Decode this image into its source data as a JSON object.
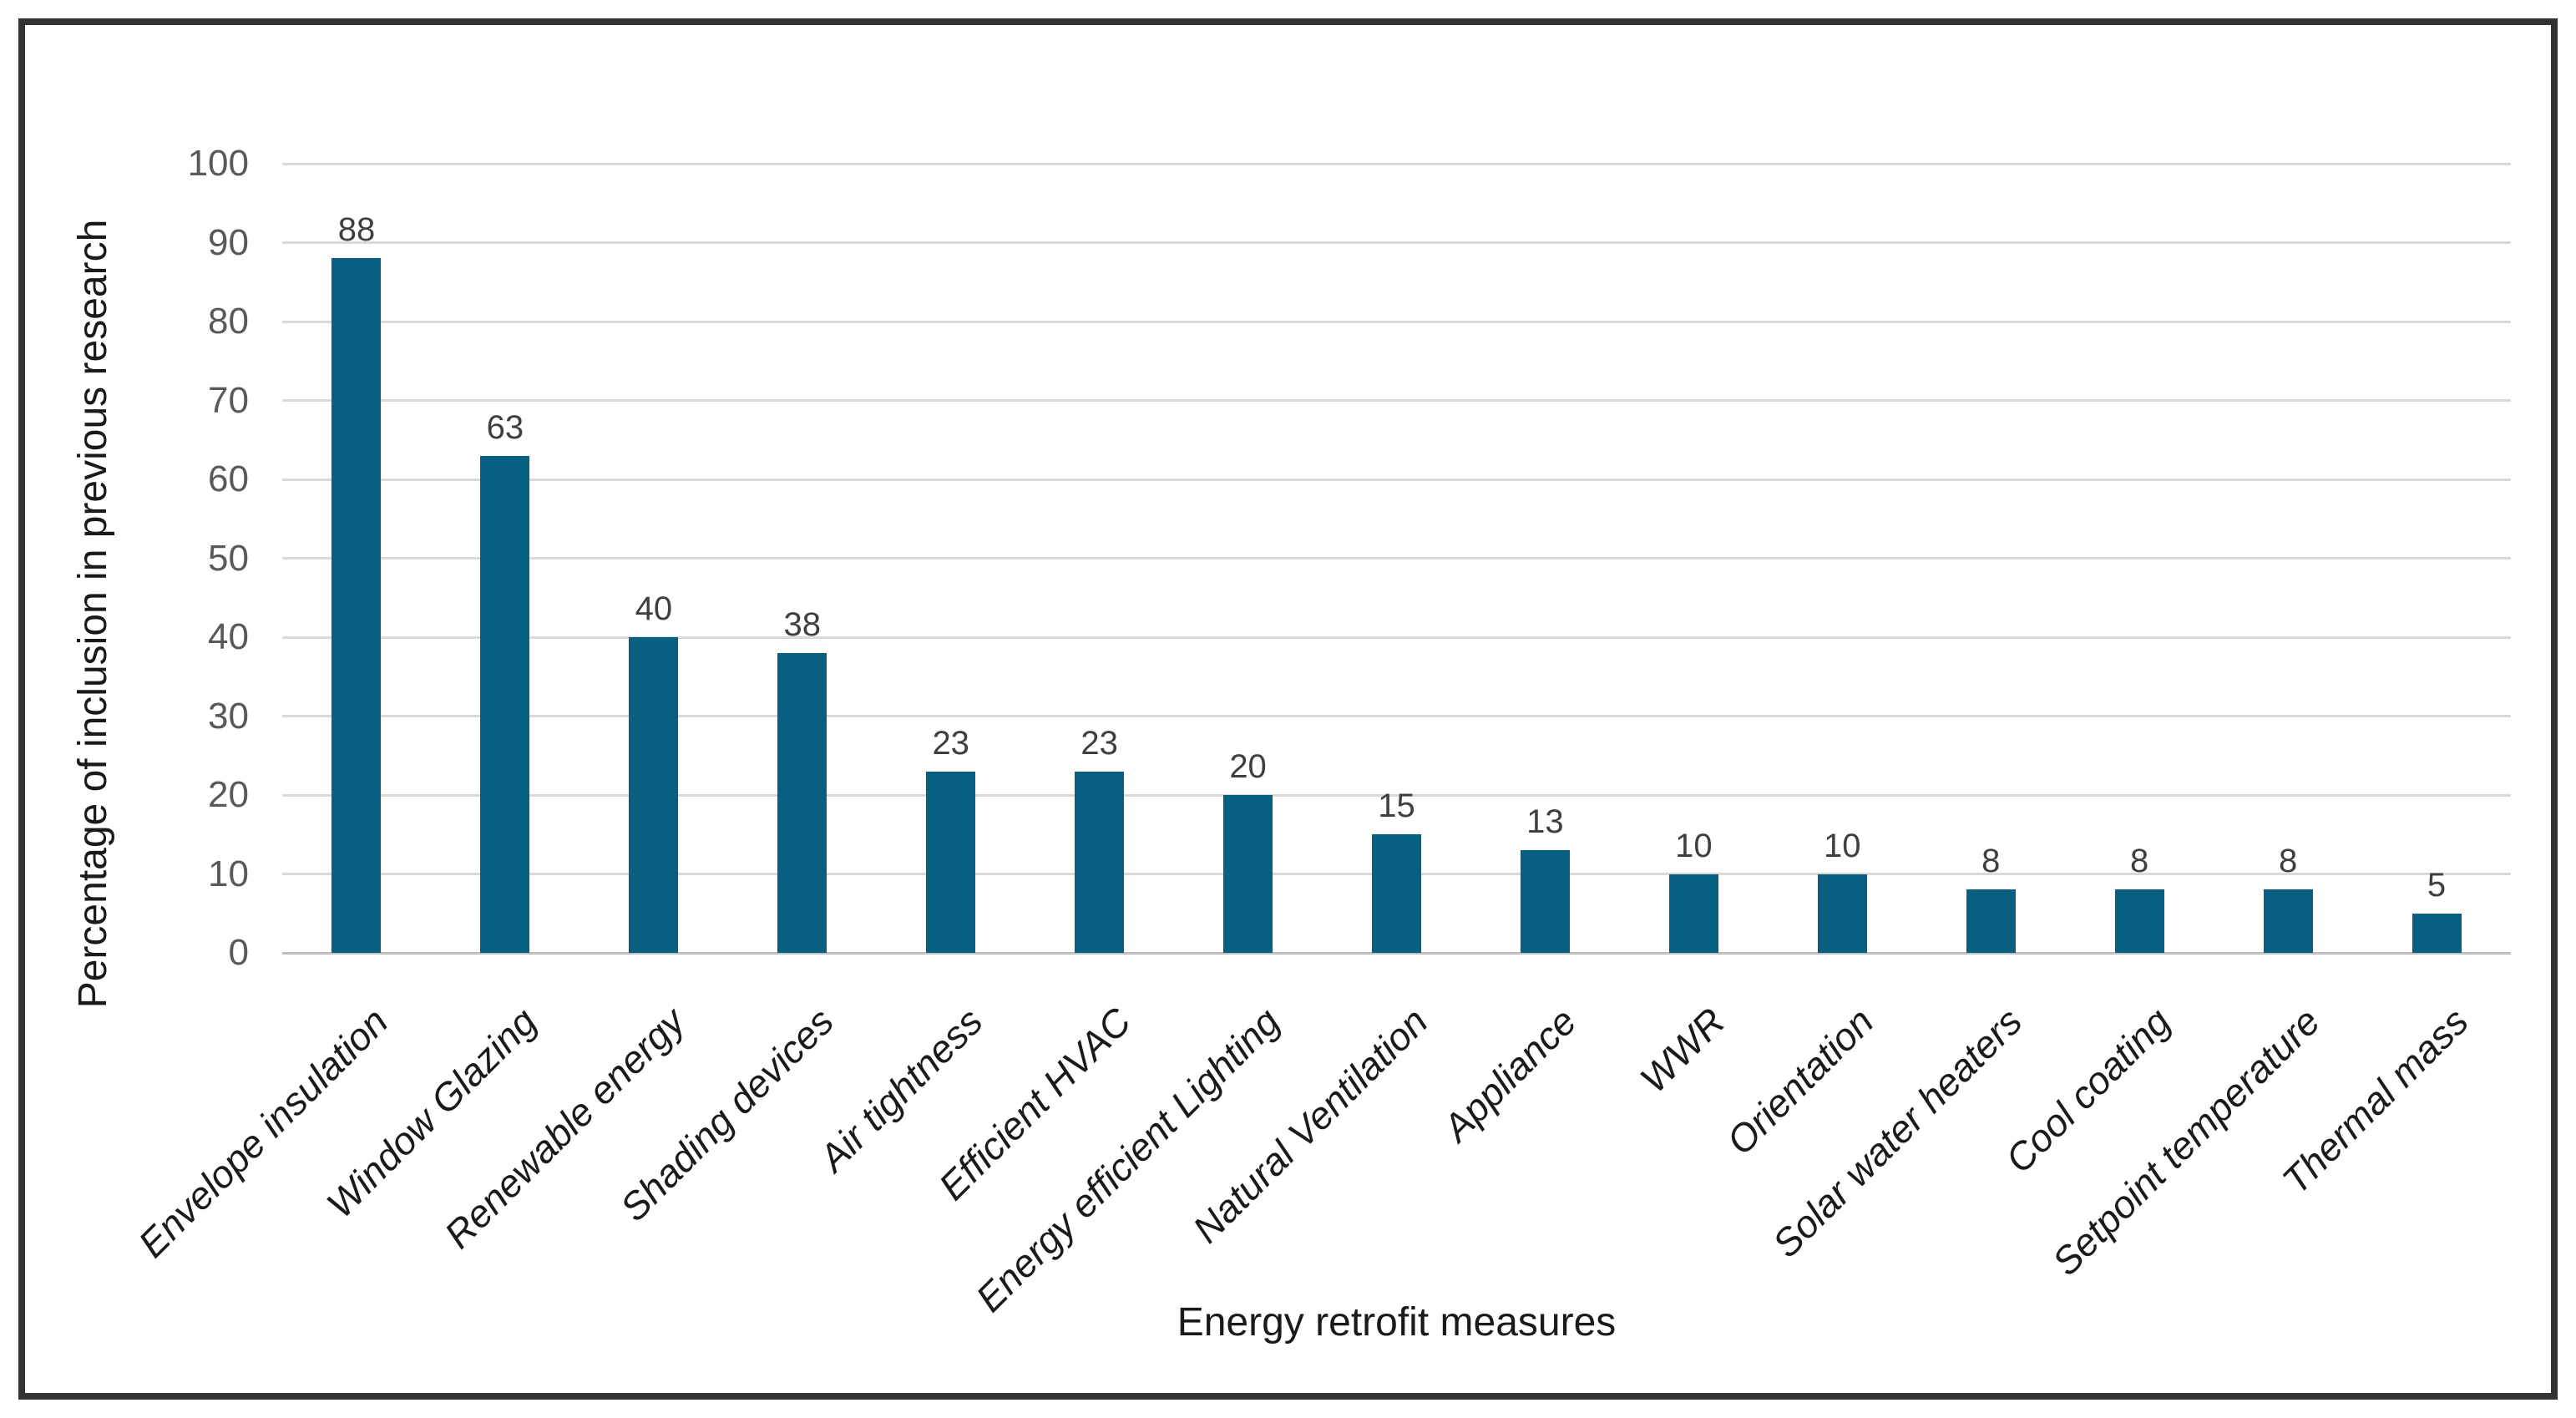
{
  "chart_data": {
    "type": "bar",
    "title": "",
    "categories": [
      "Envelope insulation",
      "Window Glazing",
      "Renewable energy",
      "Shading devices",
      "Air tightness",
      "Efficient HVAC",
      "Energy efficient Lighting",
      "Natural Ventilation",
      "Appliance",
      "WWR",
      "Orientation",
      "Solar water heaters",
      "Cool coating",
      "Setpoint temperature",
      "Thermal mass"
    ],
    "values": [
      88,
      63,
      40,
      38,
      23,
      23,
      20,
      15,
      13,
      10,
      10,
      8,
      8,
      8,
      5
    ],
    "xlabel": "Energy retrofit measures",
    "ylabel": "Percentage of inclusion in previous research",
    "ylim": [
      0,
      100
    ],
    "yticks": [
      0,
      10,
      20,
      30,
      40,
      50,
      60,
      70,
      80,
      90,
      100
    ],
    "grid": true,
    "legend": "none",
    "colors": {
      "bar": "#075F81",
      "value_label": "#3f3f3f",
      "tick_label": "#595959",
      "category_label": "#1a1a1a",
      "axis_title": "#1a1a1a",
      "gridline": "#d9d9d9",
      "baseline": "#bfbfbf",
      "frame_border": "#333333",
      "background": "#ffffff"
    }
  }
}
